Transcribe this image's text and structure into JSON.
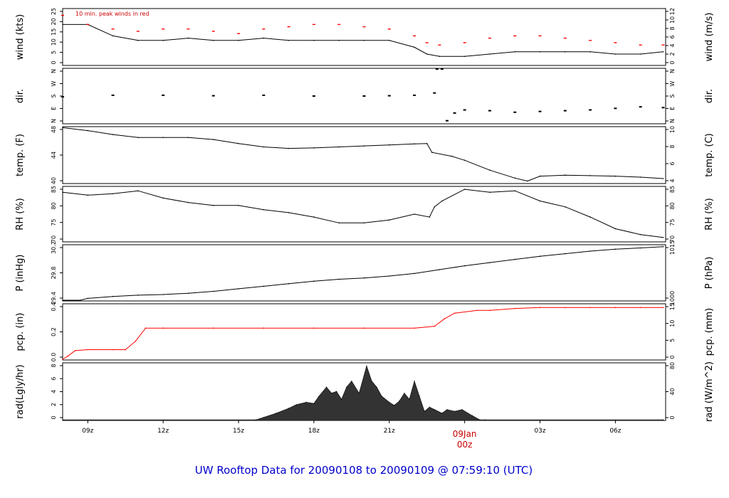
{
  "title": "UW Rooftop Data for 20090108  to  20090109 @ 07:59:10  (UTC)",
  "date_label": {
    "day": "09Jan",
    "hour": "00z"
  },
  "x_ticks": [
    "09z",
    "12z",
    "15z",
    "18z",
    "21z",
    "00z",
    "03z",
    "06z"
  ],
  "colors": {
    "line": "#000000",
    "peak": "#ff0000",
    "precip": "#ff0000",
    "radiation_fill": "#333333",
    "title": "#0000cc"
  },
  "chart_data": [
    {
      "type": "line",
      "ylabel_left": "wind (kts)",
      "ylabel_right": "wind (m/s)",
      "annotation": "10 min. peak winds in red",
      "ylim": [
        0,
        25
      ],
      "yticks_left": [
        "0",
        "5",
        "10",
        "15",
        "20",
        "25"
      ],
      "yticks_right": [
        "0",
        "2",
        "4",
        "6",
        "8",
        "10",
        "12"
      ],
      "x_hours": [
        8,
        9,
        10,
        11,
        12,
        13,
        14,
        15,
        16,
        17,
        18,
        19,
        20,
        21,
        22,
        22.5,
        23,
        24,
        25,
        26,
        27,
        28,
        29,
        30,
        31,
        31.9
      ],
      "series": [
        {
          "values": [
            18,
            18,
            13,
            11,
            11,
            12,
            11,
            11,
            12,
            11,
            11,
            11,
            11,
            11,
            8,
            5,
            4,
            4,
            5,
            6,
            6,
            6,
            6,
            5,
            5,
            6
          ]
        },
        {
          "values": [
            22,
            18,
            16,
            15,
            16,
            16,
            15,
            14,
            16,
            17,
            18,
            18,
            17,
            16,
            13,
            10,
            9,
            10,
            12,
            13,
            13,
            12,
            11,
            10,
            9,
            9
          ]
        }
      ]
    },
    {
      "type": "scatter",
      "ylabel_left": "dir.",
      "ylabel_right": "dir.",
      "ylim": [
        0,
        360
      ],
      "yticks_left": [
        "N",
        "E",
        "S",
        "W",
        "N"
      ],
      "yticks_right": [
        "N",
        "E",
        "S",
        "W",
        "N"
      ],
      "x_hours": [
        8,
        10,
        12,
        14,
        16,
        18,
        20,
        21,
        22,
        22.8,
        22.9,
        23.1,
        23.3,
        23.6,
        24,
        25,
        26,
        27,
        28,
        29,
        30,
        31,
        31.9
      ],
      "values": [
        175,
        185,
        185,
        182,
        185,
        180,
        180,
        182,
        185,
        200,
        355,
        360,
        20,
        70,
        90,
        85,
        75,
        80,
        85,
        90,
        100,
        110,
        105
      ]
    },
    {
      "type": "line",
      "ylabel_left": "temp. (F)",
      "ylabel_right": "temp. (C)",
      "ylim": [
        39.5,
        51
      ],
      "yticks_left": [
        "40",
        "44",
        "48"
      ],
      "yticks_right": [
        "4",
        "6",
        "8",
        "10"
      ],
      "x_hours": [
        8,
        9,
        10,
        11,
        12,
        13,
        14,
        15,
        16,
        17,
        18,
        19,
        20,
        21,
        22,
        22.5,
        22.7,
        23.5,
        24,
        25,
        26,
        26.5,
        27,
        28,
        29,
        30,
        31,
        31.9
      ],
      "series": [
        {
          "values": [
            50.8,
            50.2,
            49.4,
            48.8,
            48.8,
            48.8,
            48.4,
            47.6,
            46.9,
            46.6,
            46.7,
            46.9,
            47.1,
            47.3,
            47.5,
            47.6,
            45.8,
            45,
            44.2,
            42.2,
            40.6,
            40,
            41,
            41.2,
            41.1,
            41,
            40.8,
            40.5
          ]
        }
      ]
    },
    {
      "type": "line",
      "ylabel_left": "RH (%)",
      "ylabel_right": "RH (%)",
      "ylim": [
        69,
        88
      ],
      "yticks_left": [
        "70",
        "75",
        "80",
        "85"
      ],
      "yticks_right": [
        "70",
        "75",
        "80",
        "85"
      ],
      "x_hours": [
        8,
        9,
        10,
        11,
        12,
        13,
        14,
        15,
        16,
        17,
        18,
        19,
        20,
        21,
        22,
        22.6,
        22.8,
        23.1,
        24,
        25,
        26,
        27,
        28,
        29,
        30,
        31,
        31.9
      ],
      "series": [
        {
          "values": [
            86,
            85,
            85.5,
            86.5,
            84,
            82.5,
            81.5,
            81.5,
            80,
            79,
            77.5,
            75.5,
            75.5,
            76.5,
            78.5,
            77.5,
            81,
            83,
            87,
            86,
            86.5,
            83,
            81,
            77.5,
            73.5,
            71.5,
            70.5
          ]
        }
      ]
    },
    {
      "type": "line",
      "ylabel_left": "P (inHg)",
      "ylabel_right": "P (hPa)",
      "ylim": [
        29.37,
        30.25
      ],
      "yticks_left": [
        "29.4",
        "29.8",
        "30.2"
      ],
      "yticks_right": [
        "1000",
        "1015"
      ],
      "x_hours": [
        8,
        8.7,
        9,
        10,
        11,
        12,
        13,
        14,
        15,
        16,
        17,
        18,
        19,
        20,
        21,
        22,
        23,
        24,
        25,
        26,
        27,
        28,
        29,
        30,
        31,
        31.9
      ],
      "series": [
        {
          "values": [
            29.38,
            29.38,
            29.41,
            29.44,
            29.46,
            29.47,
            29.49,
            29.52,
            29.56,
            29.6,
            29.64,
            29.68,
            29.71,
            29.73,
            29.76,
            29.8,
            29.86,
            29.92,
            29.97,
            30.02,
            30.07,
            30.11,
            30.15,
            30.18,
            30.2,
            30.22
          ]
        }
      ]
    },
    {
      "type": "line",
      "ylabel_left": "pcp. (in)",
      "ylabel_right": "pcp. (mm)",
      "ylim": [
        0,
        0.6
      ],
      "yticks_left": [
        "0.0",
        "0.2",
        "0.4"
      ],
      "yticks_right": [
        "0",
        "5",
        "10",
        "15"
      ],
      "x_hours": [
        8,
        8.2,
        8.5,
        9,
        10,
        10.5,
        10.9,
        11.3,
        12,
        14,
        16,
        18,
        20,
        22,
        22.8,
        23.2,
        23.6,
        24.5,
        25,
        26,
        27,
        28,
        29,
        30,
        31,
        31.9
      ],
      "series": [
        {
          "values": [
            0,
            0.04,
            0.1,
            0.11,
            0.11,
            0.11,
            0.2,
            0.34,
            0.34,
            0.34,
            0.34,
            0.34,
            0.34,
            0.34,
            0.36,
            0.44,
            0.5,
            0.53,
            0.53,
            0.55,
            0.56,
            0.56,
            0.56,
            0.56,
            0.56,
            0.56
          ]
        }
      ]
    },
    {
      "type": "area",
      "ylabel_left": "rad(Lgly/hr)",
      "ylabel_right": "rad (W/m^2)",
      "ylim": [
        0,
        9.5
      ],
      "yticks_left": [
        "0",
        "2",
        "4",
        "6",
        "8"
      ],
      "yticks_right": [
        "0",
        "40",
        "80"
      ],
      "x_hours": [
        8,
        15.7,
        16,
        16.5,
        17,
        17.3,
        17.7,
        18,
        18.2,
        18.5,
        18.7,
        18.9,
        19.1,
        19.3,
        19.5,
        19.8,
        20.1,
        20.3,
        20.5,
        20.7,
        21,
        21.2,
        21.4,
        21.6,
        21.8,
        22,
        22.2,
        22.4,
        22.6,
        22.8,
        23.1,
        23.3,
        23.6,
        23.9,
        24.3,
        24.6,
        24.8,
        31.9
      ],
      "values": [
        0,
        0,
        0.5,
        1.2,
        2.0,
        2.6,
        3.0,
        2.8,
        4.0,
        5.5,
        4.5,
        4.8,
        3.5,
        5.5,
        6.5,
        4.5,
        9.0,
        6.5,
        5.5,
        4.0,
        3.0,
        2.5,
        3.2,
        4.5,
        3.5,
        6.5,
        4.0,
        1.5,
        2.2,
        1.8,
        1.2,
        1.8,
        1.5,
        1.8,
        0.8,
        0.1,
        0,
        0
      ]
    }
  ]
}
